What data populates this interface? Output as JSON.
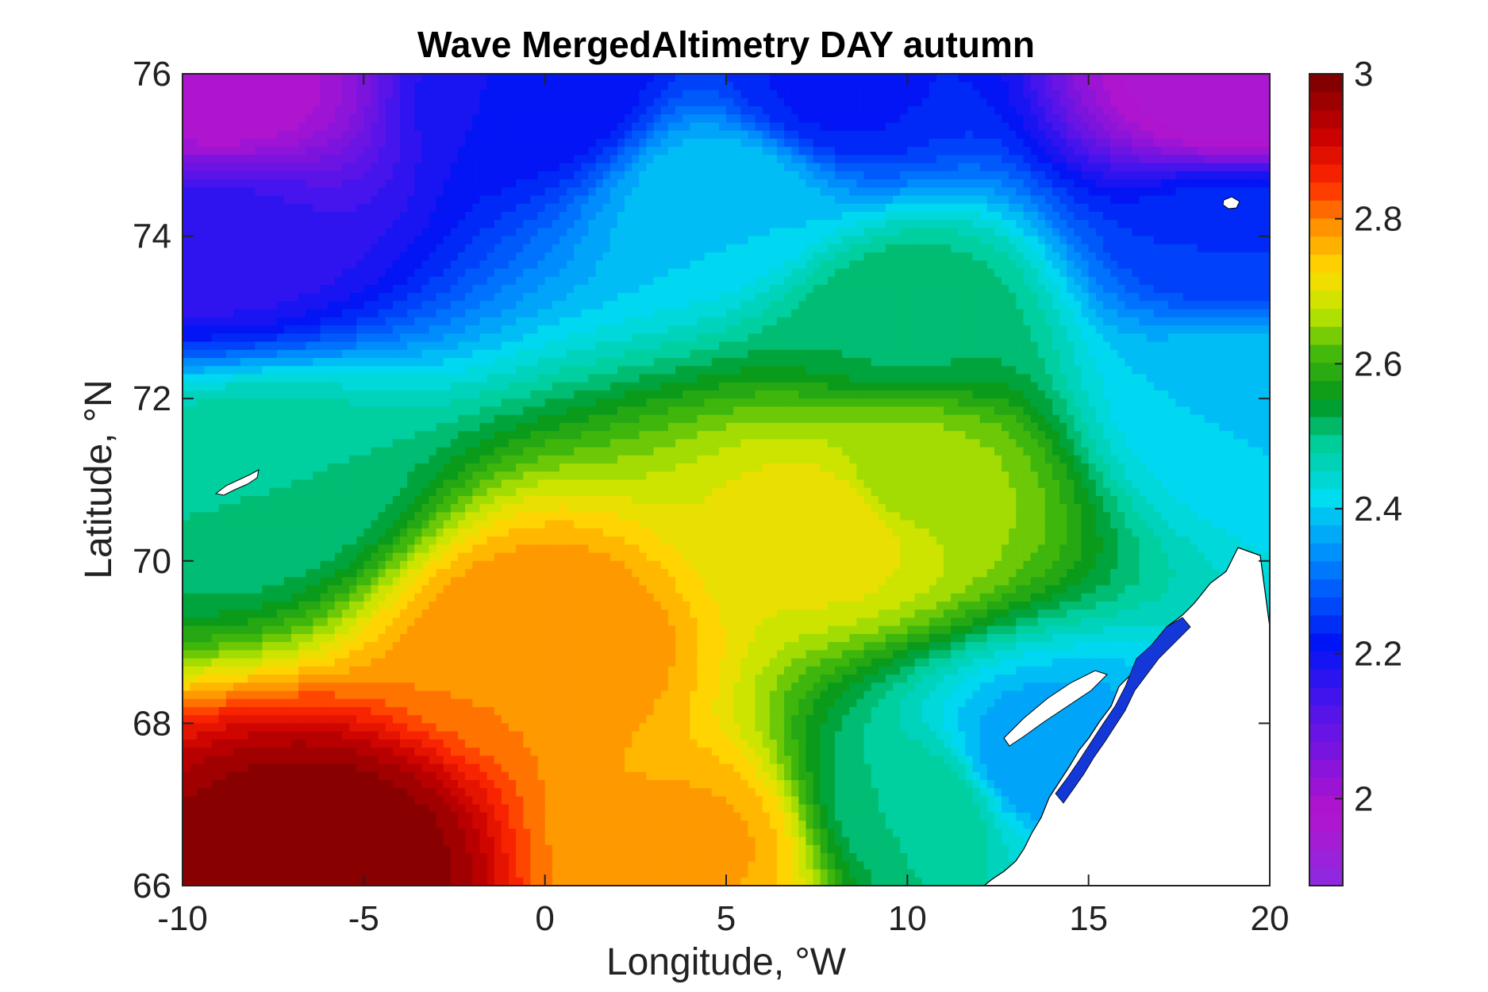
{
  "chart_data": {
    "type": "heatmap",
    "subtype": "filled contour map",
    "title": "Wave MergedAltimetry DAY autumn",
    "xlabel": "Longitude, °W",
    "ylabel": "Latitude, °N",
    "xlim": [
      -10,
      20
    ],
    "ylim": [
      66,
      76
    ],
    "x_ticks": [
      "-10",
      "-5",
      "0",
      "5",
      "10",
      "15",
      "20"
    ],
    "y_ticks": [
      "66",
      "68",
      "70",
      "72",
      "74",
      "76"
    ],
    "colorbar": {
      "min": 1.88,
      "max": 3.0,
      "ticks": [
        "2",
        "2.2",
        "2.4",
        "2.6",
        "2.8",
        "3"
      ],
      "colormap": "jet-like (violet → blue → cyan → green → yellow → red → dark red)"
    },
    "contour_step": 0.025,
    "grid": false,
    "field_samples": {
      "description": "approximate values read from the contour colours",
      "points": [
        {
          "lon": -9,
          "lat": 75.8,
          "value": 1.98
        },
        {
          "lon": 0,
          "lat": 75.8,
          "value": 2.2
        },
        {
          "lon": 8,
          "lat": 75.8,
          "value": 2.22
        },
        {
          "lon": 19,
          "lat": 75.8,
          "value": 1.95
        },
        {
          "lon": -9,
          "lat": 74,
          "value": 2.16
        },
        {
          "lon": 5,
          "lat": 74.5,
          "value": 2.4
        },
        {
          "lon": 19,
          "lat": 74,
          "value": 2.25
        },
        {
          "lon": -8,
          "lat": 71,
          "value": 2.5
        },
        {
          "lon": 10,
          "lat": 73,
          "value": 2.52
        },
        {
          "lon": 19,
          "lat": 72,
          "value": 2.4
        },
        {
          "lon": 10,
          "lat": 71,
          "value": 2.66
        },
        {
          "lon": 8,
          "lat": 70.5,
          "value": 2.72
        },
        {
          "lon": 0,
          "lat": 69,
          "value": 2.8
        },
        {
          "lon": -6,
          "lat": 66.3,
          "value": 3.0
        },
        {
          "lon": 4,
          "lat": 66.5,
          "value": 2.78
        },
        {
          "lon": 10.5,
          "lat": 67,
          "value": 2.5
        },
        {
          "lon": 13.5,
          "lat": 67.5,
          "value": 2.35
        }
      ]
    }
  }
}
